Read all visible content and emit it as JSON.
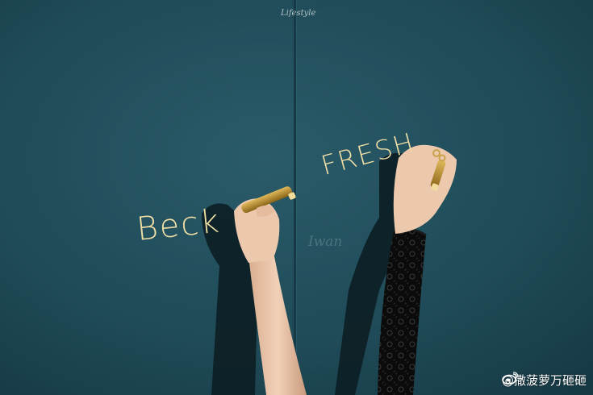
{
  "scene": {
    "description_colors": {
      "wall": "#1f4a57",
      "wall_shadow": "#0c1e24",
      "skin": "#e8c4a8",
      "marker_gold": "#b58a2c",
      "ink": "#f0dfa6",
      "lace": "#0a0a0a"
    }
  },
  "texts": {
    "beck": "Beck",
    "fresh": "FRESH",
    "faint": "Iwan",
    "signature": "Lifestyle"
  },
  "watermark": {
    "icon": "weibo-icon",
    "text": "@撒菠萝万砸砸"
  }
}
